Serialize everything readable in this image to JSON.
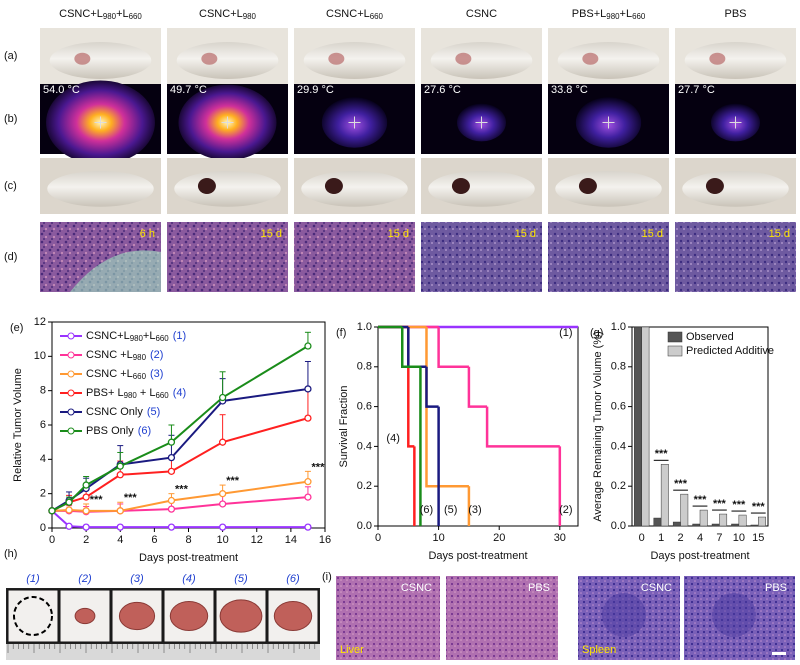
{
  "columns": [
    "CSNC+L980+L660",
    "CSNC+L980",
    "CSNC+L660",
    "CSNC",
    "PBS+L980+L660",
    "PBS"
  ],
  "rows": [
    "(a)",
    "(b)",
    "(c)",
    "(d)"
  ],
  "temperatures": [
    "54.0 °C",
    "49.7 °C",
    "29.9 °C",
    "27.6 °C",
    "33.8 °C",
    "27.7 °C"
  ],
  "timepoints": [
    "6 h",
    "15 d",
    "15 d",
    "15 d",
    "15 d",
    "15 d"
  ],
  "chart_data": [
    {
      "type": "line",
      "panel": "(e)",
      "xlabel": "Days post-treatment",
      "ylabel": "Relative Tumor Volume",
      "x": [
        0,
        1,
        2,
        4,
        7,
        10,
        15
      ],
      "xlim": [
        0,
        16
      ],
      "xticks": [
        0,
        2,
        4,
        6,
        8,
        10,
        12,
        14,
        16
      ],
      "ylim": [
        0,
        12
      ],
      "yticks": [
        0,
        2,
        4,
        6,
        8,
        10,
        12
      ],
      "series": [
        {
          "name": "CSNC+L980+L660",
          "tag": "(1)",
          "color": "#9933ff",
          "values": [
            1,
            0.1,
            0.05,
            0.05,
            0.05,
            0.05,
            0.05
          ],
          "errors": [
            0,
            0.05,
            0.05,
            0.05,
            0.05,
            0.05,
            0.05
          ]
        },
        {
          "name": "CSNC +L980",
          "tag": "(2)",
          "color": "#ff3399",
          "values": [
            1,
            1.0,
            0.95,
            1.0,
            1.1,
            1.4,
            1.8
          ],
          "errors": [
            0,
            0.3,
            0.3,
            0.4,
            0.4,
            0.5,
            0.6
          ]
        },
        {
          "name": "CSNC +L660",
          "tag": "(3)",
          "color": "#ff9933",
          "values": [
            1,
            1.05,
            1.0,
            1.0,
            1.6,
            2.0,
            2.7
          ],
          "errors": [
            0,
            0.3,
            0.4,
            0.5,
            0.4,
            0.5,
            0.6
          ]
        },
        {
          "name": "PBS+ L980 + L660",
          "tag": "(4)",
          "color": "#ff2020",
          "values": [
            1,
            1.5,
            1.8,
            3.1,
            3.3,
            5.0,
            6.4
          ],
          "errors": [
            0,
            0.4,
            0.6,
            0.8,
            0.9,
            1.6,
            1.8
          ]
        },
        {
          "name": "CSNC Only",
          "tag": "(5)",
          "color": "#1a1a80",
          "values": [
            1,
            1.6,
            2.3,
            3.7,
            4.1,
            7.4,
            8.1
          ],
          "errors": [
            0,
            0.5,
            0.6,
            1.1,
            1.3,
            1.3,
            1.6
          ]
        },
        {
          "name": "PBS Only",
          "tag": "(6)",
          "color": "#1a8c1a",
          "values": [
            1,
            1.5,
            2.5,
            3.6,
            5.0,
            7.6,
            10.6
          ],
          "errors": [
            0,
            0.3,
            0.5,
            0.8,
            1.0,
            1.5,
            0.8
          ]
        }
      ],
      "annotations": [
        {
          "text": "***",
          "x": 2
        },
        {
          "text": "***",
          "x": 4
        },
        {
          "text": "***",
          "x": 7
        },
        {
          "text": "***",
          "x": 10
        },
        {
          "text": "***",
          "x": 15
        }
      ]
    },
    {
      "type": "step",
      "panel": "(f)",
      "xlabel": "Days post-treatment",
      "ylabel": "Survival Fraction",
      "xlim": [
        0,
        33
      ],
      "xticks": [
        0,
        10,
        20,
        30
      ],
      "ylim": [
        0,
        1
      ],
      "yticks": [
        {
          "value": 0,
          "label": "0.0"
        },
        {
          "value": 0.2,
          "label": "0.2"
        },
        {
          "value": 0.4,
          "label": "0.4"
        },
        {
          "value": 0.6,
          "label": "0.6"
        },
        {
          "value": 0.8,
          "label": "0.8"
        },
        {
          "value": 1,
          "label": "1.0"
        }
      ],
      "series": [
        {
          "name": "(1)",
          "color": "#9933ff",
          "x": [
            0
          ],
          "values": [
            1
          ]
        },
        {
          "name": "(2)",
          "color": "#ff3399",
          "x": [
            0,
            10,
            15,
            18,
            30
          ],
          "values": [
            1,
            0.8,
            0.6,
            0.4,
            0
          ]
        },
        {
          "name": "(3)",
          "color": "#ff9933",
          "x": [
            0,
            8,
            15
          ],
          "values": [
            1,
            0.2,
            0
          ]
        },
        {
          "name": "(4)",
          "color": "#ff2020",
          "x": [
            0,
            5,
            6
          ],
          "values": [
            1,
            0.4,
            0
          ]
        },
        {
          "name": "(5)",
          "color": "#1a1a80",
          "x": [
            0,
            5,
            8,
            10
          ],
          "values": [
            1,
            0.8,
            0.6,
            0
          ]
        },
        {
          "name": "(6)",
          "color": "#1a8c1a",
          "x": [
            0,
            4,
            7
          ],
          "values": [
            1,
            0.8,
            0
          ]
        }
      ]
    },
    {
      "type": "bar",
      "panel": "(g)",
      "xlabel": "Days post-treatment",
      "ylabel": "Average Remaining Tumor Volume (%)",
      "categories": [
        "0",
        "1",
        "2",
        "4",
        "7",
        "10",
        "15"
      ],
      "ylim": [
        0,
        1
      ],
      "yticks": [
        {
          "value": 0,
          "label": "0.0"
        },
        {
          "value": 0.2,
          "label": "0.2"
        },
        {
          "value": 0.4,
          "label": "0.4"
        },
        {
          "value": 0.6,
          "label": "0.6"
        },
        {
          "value": 0.8,
          "label": "0.8"
        },
        {
          "value": 1,
          "label": "1.0"
        }
      ],
      "legend": "upper right",
      "series": [
        {
          "name": "Observed",
          "color": "#555555",
          "values": [
            1.0,
            0.04,
            0.02,
            0.01,
            0.01,
            0.01,
            0.005
          ]
        },
        {
          "name": "Predicted Additive",
          "color": "#cccccc",
          "values": [
            1.0,
            0.31,
            0.16,
            0.08,
            0.06,
            0.055,
            0.045
          ]
        }
      ],
      "annotations": [
        null,
        "***",
        "***",
        "***",
        "***",
        "***",
        "***"
      ]
    }
  ],
  "tumors": {
    "panel": "(h)",
    "labels": [
      "(1)",
      "(2)",
      "(3)",
      "(4)",
      "(5)",
      "(6)"
    ]
  },
  "histology": {
    "panel": "(i)",
    "labels": [
      "CSNC",
      "PBS",
      "CSNC",
      "PBS"
    ],
    "organs": [
      "Liver",
      "Spleen"
    ]
  }
}
